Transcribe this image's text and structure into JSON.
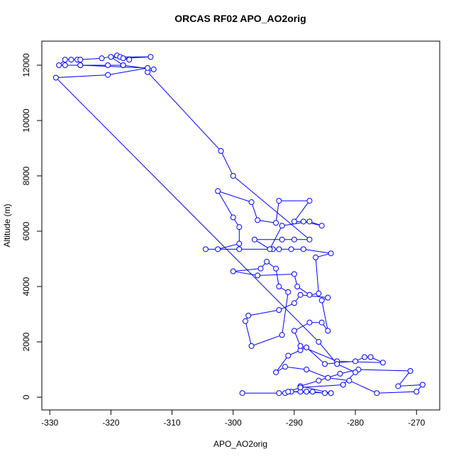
{
  "chart_data": {
    "type": "line",
    "title": "ORCAS RF02 APO_AO2orig",
    "x_label": "APO_AO2orig",
    "y_label": "Altitude (m)",
    "color": "#0000ff",
    "markers": true,
    "xlim": [
      -331.3,
      -266.2
    ],
    "ylim": [
      -460,
      12870
    ],
    "xticks": [
      -330,
      -320,
      -310,
      -300,
      -290,
      -280,
      -270
    ],
    "yticks": [
      0,
      2000,
      4000,
      6000,
      8000,
      10000,
      12000
    ],
    "x": [
      -298.5,
      -292.5,
      -291.5,
      -290.5,
      -289,
      -288,
      -287,
      -285,
      -284,
      -289,
      -286,
      -282.5,
      -279.5,
      -271,
      -273,
      -269,
      -270,
      -276.5,
      -281,
      -284.5,
      -288,
      -291.5,
      -293,
      -291,
      -289,
      -288,
      -285,
      -280,
      -278.5,
      -277.5,
      -275.5,
      -283,
      -289,
      -290,
      -287.5,
      -285.5,
      -284.5,
      -285.5,
      -284.5,
      -289,
      -290,
      -292.5,
      -297.5,
      -298,
      -297,
      -292,
      -291,
      -292.5,
      -293,
      -294.5,
      -295.5,
      -300,
      -296,
      -290,
      -289.5,
      -287.5,
      -286,
      -286.5,
      -284,
      -288.5,
      -290.5,
      -292.5,
      -293.5,
      -299,
      -304.5,
      -302.5,
      -299,
      -299,
      -300,
      -302.5,
      -297,
      -296,
      -293,
      -292.5,
      -287.5,
      -290,
      -288.5,
      -285.5,
      -287.5,
      -292,
      -294,
      -296.5,
      -292,
      -290,
      -287.5,
      -300,
      -302,
      -314,
      -313,
      -318,
      -320.5,
      -325,
      -328.5,
      -327.5,
      -326.5,
      -325.5,
      -325,
      -321.5,
      -319,
      -318.5,
      -313.5,
      -318,
      -317,
      -320,
      -318,
      -327.5,
      -325,
      -314,
      -320.5,
      -329,
      -286,
      -283,
      -280,
      -282,
      -289,
      -291,
      -284
    ],
    "series": [
      {
        "values": [
          150,
          150,
          150,
          200,
          200,
          200,
          200,
          150,
          150,
          400,
          600,
          850,
          1000,
          950,
          400,
          450,
          200,
          150,
          600,
          700,
          1000,
          1100,
          900,
          1500,
          1700,
          1800,
          1200,
          1300,
          1450,
          1450,
          1250,
          1300,
          1850,
          2400,
          2700,
          2700,
          2400,
          3500,
          3600,
          3700,
          3400,
          3150,
          2950,
          2750,
          1850,
          2250,
          3800,
          4000,
          4650,
          4900,
          4650,
          4550,
          4400,
          4450,
          4000,
          3700,
          3750,
          5050,
          5200,
          5350,
          5350,
          5350,
          5350,
          5350,
          5350,
          5350,
          5550,
          6150,
          6500,
          7450,
          7050,
          6400,
          6300,
          7100,
          7100,
          6350,
          6350,
          6200,
          6350,
          6200,
          5350,
          5700,
          5700,
          5700,
          5700,
          8000,
          8900,
          11750,
          11850,
          12000,
          12000,
          12000,
          12000,
          12200,
          12200,
          12200,
          12200,
          12250,
          12350,
          12300,
          12300,
          12250,
          12200,
          12300,
          12000,
          12000,
          12000,
          11900,
          11650,
          11550,
          2000,
          1200,
          900,
          450,
          350,
          200,
          150
        ]
      }
    ]
  }
}
